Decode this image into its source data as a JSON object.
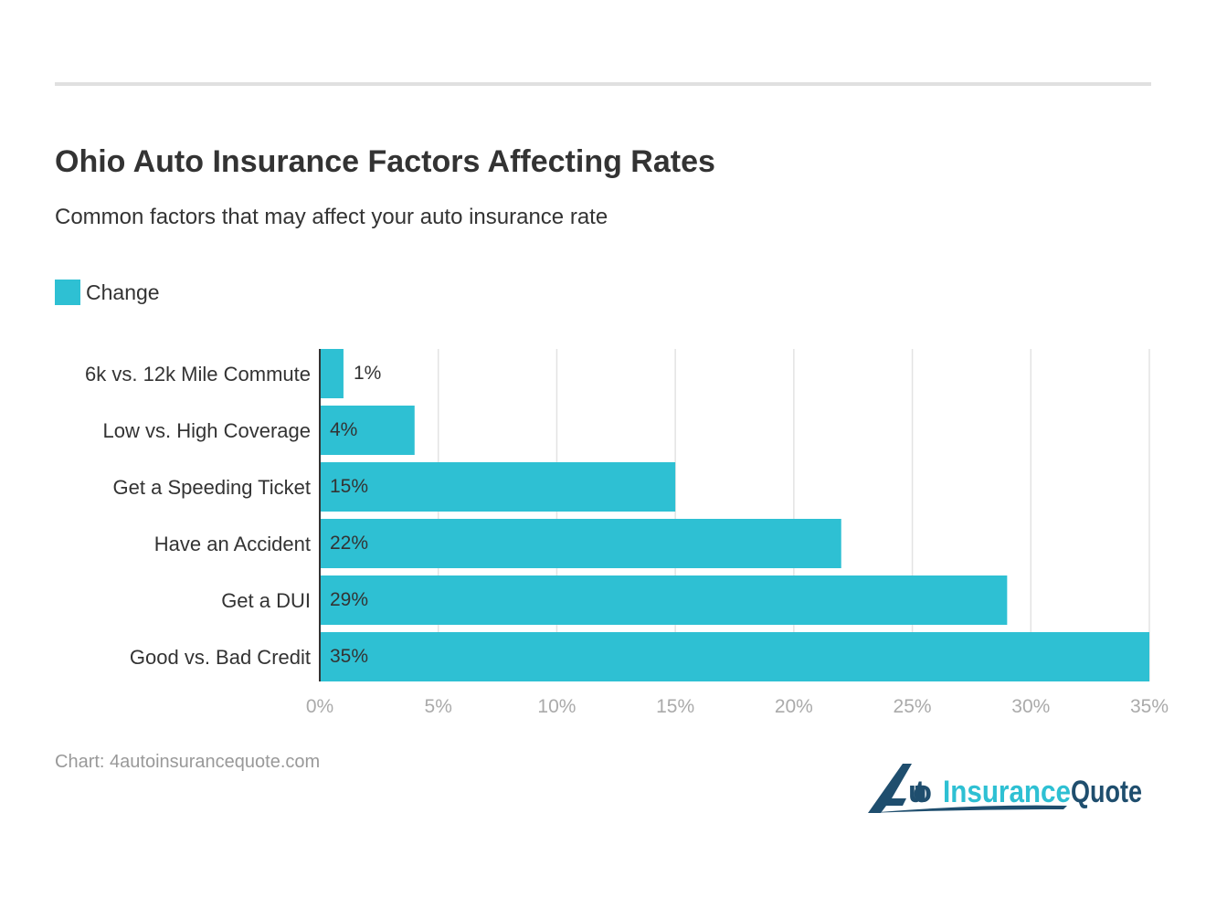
{
  "title": "Ohio Auto Insurance Factors Affecting Rates",
  "subtitle": "Common factors that may affect your auto insurance rate",
  "source": "Chart: 4autoinsurancequote.com",
  "logo_text": "4AutoInsuranceQuote",
  "colors": {
    "bar": "#2ec0d3",
    "logo_dark": "#1f4e6e",
    "logo_light": "#2ec0d3"
  },
  "chart_data": {
    "type": "bar",
    "orientation": "horizontal",
    "title": "Ohio Auto Insurance Factors Affecting Rates",
    "categories": [
      "6k vs. 12k Mile Commute",
      "Low vs. High Coverage",
      "Get a Speeding Ticket",
      "Have an Accident",
      "Get a DUI",
      "Good vs. Bad Credit"
    ],
    "series": [
      {
        "name": "Change",
        "values": [
          1,
          4,
          15,
          22,
          29,
          35
        ]
      }
    ],
    "data_labels": [
      "1%",
      "4%",
      "15%",
      "22%",
      "29%",
      "35%"
    ],
    "xlim": [
      0,
      35
    ],
    "xticks": [
      0,
      5,
      10,
      15,
      20,
      25,
      30,
      35
    ],
    "xtick_labels": [
      "0%",
      "5%",
      "10%",
      "15%",
      "20%",
      "25%",
      "30%",
      "35%"
    ],
    "grid": true,
    "legend": "top-left"
  }
}
